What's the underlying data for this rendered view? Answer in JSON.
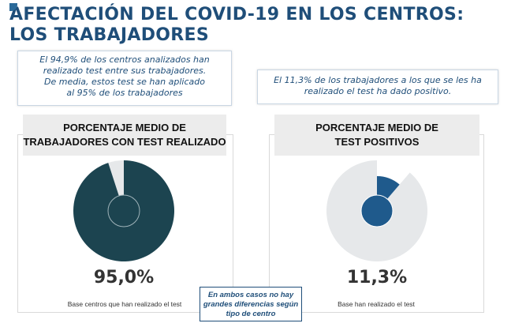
{
  "header": {
    "title_line1": "AFECTACIÓN DEL COVID-19 EN LOS CENTROS:",
    "title_line2": "LOS TRABAJADORES"
  },
  "callouts": {
    "left": [
      "El 94,9% de los centros analizados han",
      "realizado test entre sus trabajadores.",
      "De media, estos test se han aplicado",
      "al 95% de los trabajadores"
    ],
    "right": [
      "El 11,3% de los trabajadores a los que se les ha",
      "realizado el test ha dado positivo."
    ]
  },
  "note": [
    "En ambos casos no hay",
    "grandes diferencias según",
    "tipo de centro"
  ],
  "colors": {
    "title": "#1f4e79",
    "dark_teal": "#1c4450",
    "light_gray": "#e6e8ea",
    "blue": "#1f5a8c"
  },
  "chart_data": [
    {
      "type": "pie",
      "title": "PORCENTAJE MEDIO DE TRABAJADORES CON TEST REALIZADO",
      "title_lines": [
        "PORCENTAJE MEDIO DE",
        "TRABAJADORES CON TEST REALIZADO"
      ],
      "value_label": "95,0%",
      "values": [
        95.0,
        5.0
      ],
      "base": "Base centros que han realizado el test"
    },
    {
      "type": "pie",
      "title": "PORCENTAJE MEDIO DE TEST POSITIVOS",
      "title_lines": [
        "PORCENTAJE MEDIO DE",
        "TEST POSITIVOS"
      ],
      "value_label": "11,3%",
      "values": [
        11.3,
        88.7
      ],
      "base": "Base han realizado el test"
    }
  ]
}
